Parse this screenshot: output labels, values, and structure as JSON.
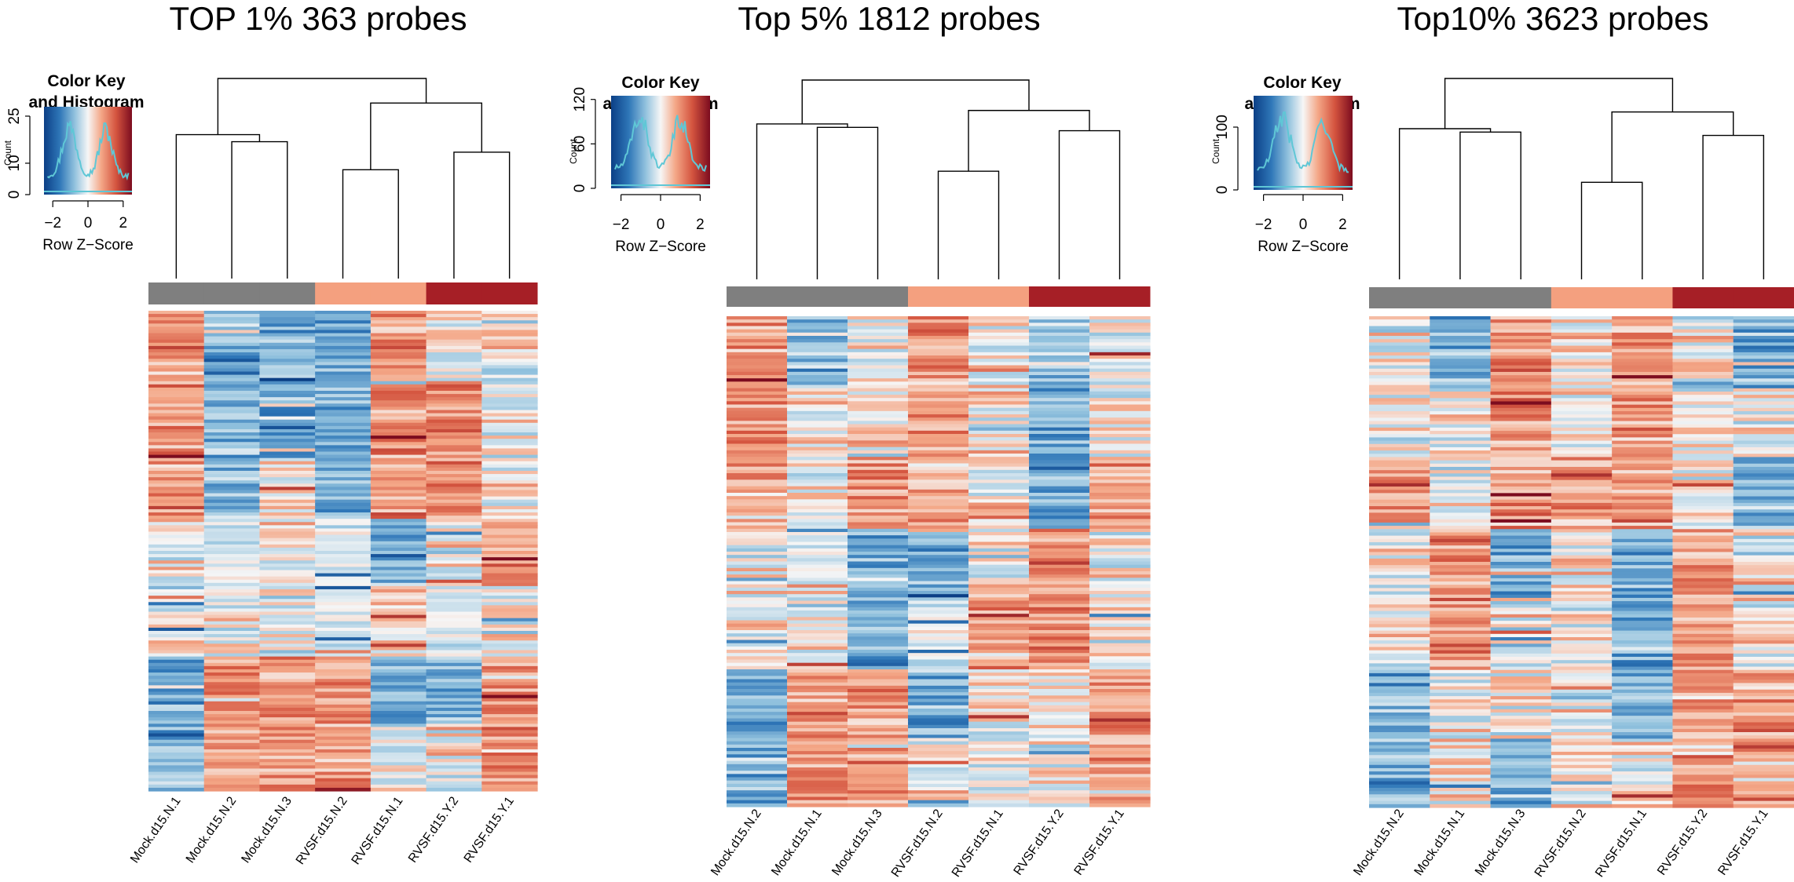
{
  "chart_data": [
    {
      "type": "heatmap",
      "title": "TOP 1% 363 probes",
      "rows": 363,
      "columns": [
        "Mock.d15.N.1",
        "Mock.d15.N.2",
        "Mock.d15.N.3",
        "RVSF.d15.N.2",
        "RVSF.d15.N.1",
        "RVSF.d15.Y.2",
        "RVSF.d15.Y.1"
      ],
      "column_groups": [
        "mock",
        "mock",
        "mock",
        "rvsf_n",
        "rvsf_n",
        "rvsf_y",
        "rvsf_y"
      ],
      "column_profiles": [
        [
          "red",
          "blue",
          "blue",
          "blue",
          "red",
          "mixed",
          "mixed"
        ],
        [
          "red",
          "blue",
          "blue",
          "blue",
          "red",
          "red",
          "mixed"
        ],
        [
          "red",
          "blue",
          "mixed",
          "blue",
          "red",
          "red",
          "mixed"
        ],
        [
          "mixed",
          "light",
          "mixed",
          "light",
          "blue",
          "mixed",
          "red"
        ],
        [
          "mixed",
          "mixed",
          "mixed",
          "light",
          "mixed",
          "light",
          "mixed"
        ],
        [
          "blue",
          "red",
          "red",
          "red",
          "blue",
          "blue",
          "red"
        ],
        [
          "blue",
          "red",
          "red",
          "red",
          "mixed",
          "mixed",
          "red"
        ]
      ],
      "dendrogram": {
        "merges": [
          [
            1,
            2,
            0.78
          ],
          [
            0,
            "m1",
            0.82
          ],
          [
            3,
            4,
            0.62
          ],
          [
            5,
            6,
            0.72
          ],
          [
            "m3",
            "m4",
            1.0
          ],
          [
            "m2",
            "m5",
            1.14
          ]
        ],
        "max_height": 1.14
      },
      "color_key": {
        "title": "Color Key\nand Histogram",
        "xlabel": "Row Z−Score",
        "ylabel": "Count",
        "xticks": [
          "−2",
          "0",
          "2"
        ],
        "yticks": [
          "0",
          "10",
          "25"
        ],
        "ymax": 28
      }
    },
    {
      "type": "heatmap",
      "title": "Top 5% 1812 probes",
      "rows": 1812,
      "columns": [
        "Mock.d15.N.2",
        "Mock.d15.N.1",
        "Mock.d15.N.3",
        "RVSF.d15.N.2",
        "RVSF.d15.N.1",
        "RVSF.d15.Y.2",
        "RVSF.d15.Y.1"
      ],
      "column_groups": [
        "mock",
        "mock",
        "mock",
        "rvsf_n",
        "rvsf_n",
        "rvsf_y",
        "rvsf_y"
      ],
      "column_profiles": [
        [
          "red",
          "blue",
          "mixed",
          "red",
          "mixed",
          "blue",
          "mixed"
        ],
        [
          "red",
          "mixed",
          "mixed",
          "red",
          "mixed",
          "blue",
          "mixed"
        ],
        [
          "red",
          "mixed",
          "red",
          "red",
          "mixed",
          "blue",
          "red"
        ],
        [
          "mixed",
          "light",
          "blue",
          "blue",
          "mixed",
          "red",
          "mixed"
        ],
        [
          "mixed",
          "mixed",
          "blue",
          "light",
          "red",
          "red",
          "mixed"
        ],
        [
          "blue",
          "red",
          "red",
          "blue",
          "mixed",
          "mixed",
          "red"
        ],
        [
          "blue",
          "red",
          "red",
          "mixed",
          "mixed",
          "mixed",
          "red"
        ]
      ],
      "dendrogram": {
        "merges": [
          [
            1,
            2,
            0.9
          ],
          [
            0,
            "m1",
            0.92
          ],
          [
            3,
            4,
            0.64
          ],
          [
            5,
            6,
            0.88
          ],
          [
            "m3",
            "m4",
            1.0
          ],
          [
            "m2",
            "m5",
            1.18
          ]
        ],
        "max_height": 1.18
      },
      "color_key": {
        "title": "Color Key\nand Histogram",
        "xlabel": "Row Z−Score",
        "ylabel": "Count",
        "xticks": [
          "−2",
          "0",
          "2"
        ],
        "yticks": [
          "0",
          "60",
          "120"
        ],
        "ymax": 125
      }
    },
    {
      "type": "heatmap",
      "title": "Top10% 3623 probes",
      "rows": 3623,
      "columns": [
        "Mock.d15.N.2",
        "Mock.d15.N.1",
        "Mock.d15.N.3",
        "RVSF.d15.N.2",
        "RVSF.d15.N.1",
        "RVSF.d15.Y.2",
        "RVSF.d15.Y.1"
      ],
      "column_groups": [
        "mock",
        "mock",
        "mock",
        "rvsf_n",
        "rvsf_n",
        "rvsf_y",
        "rvsf_y"
      ],
      "column_profiles": [
        [
          "mixed",
          "blue",
          "red",
          "mixed",
          "red",
          "mixed",
          "blue"
        ],
        [
          "mixed",
          "mixed",
          "red",
          "mixed",
          "red",
          "mixed",
          "mixed"
        ],
        [
          "red",
          "mixed",
          "red",
          "red",
          "red",
          "mixed",
          "blue"
        ],
        [
          "mixed",
          "red",
          "blue",
          "mixed",
          "blue",
          "red",
          "mixed"
        ],
        [
          "mixed",
          "red",
          "mixed",
          "mixed",
          "blue",
          "red",
          "mixed"
        ],
        [
          "blue",
          "mixed",
          "mixed",
          "mixed",
          "blue",
          "red",
          "red"
        ],
        [
          "blue",
          "mixed",
          "blue",
          "mixed",
          "mixed",
          "red",
          "red"
        ]
      ],
      "dendrogram": {
        "merges": [
          [
            1,
            2,
            0.88
          ],
          [
            0,
            "m1",
            0.9
          ],
          [
            3,
            4,
            0.58
          ],
          [
            5,
            6,
            0.86
          ],
          [
            "m3",
            "m4",
            1.0
          ],
          [
            "m2",
            "m5",
            1.2
          ]
        ],
        "max_height": 1.2
      },
      "color_key": {
        "title": "Color Key\nand Histogram",
        "xlabel": "Row Z−Score",
        "ylabel": "Count",
        "xticks": [
          "−2",
          "0",
          "2"
        ],
        "yticks": [
          "0",
          "100"
        ],
        "ymax": 150
      }
    }
  ],
  "colors": {
    "mock": "#7f7f7f",
    "rvsf_n": "#f4a07f",
    "rvsf_y": "#a61f26",
    "histogram": "#5fc7d6",
    "scale": [
      "#0b3f86",
      "#2f77b8",
      "#92c2de",
      "#f6f6f6",
      "#f4a787",
      "#d4543f",
      "#7c0c1f"
    ]
  }
}
